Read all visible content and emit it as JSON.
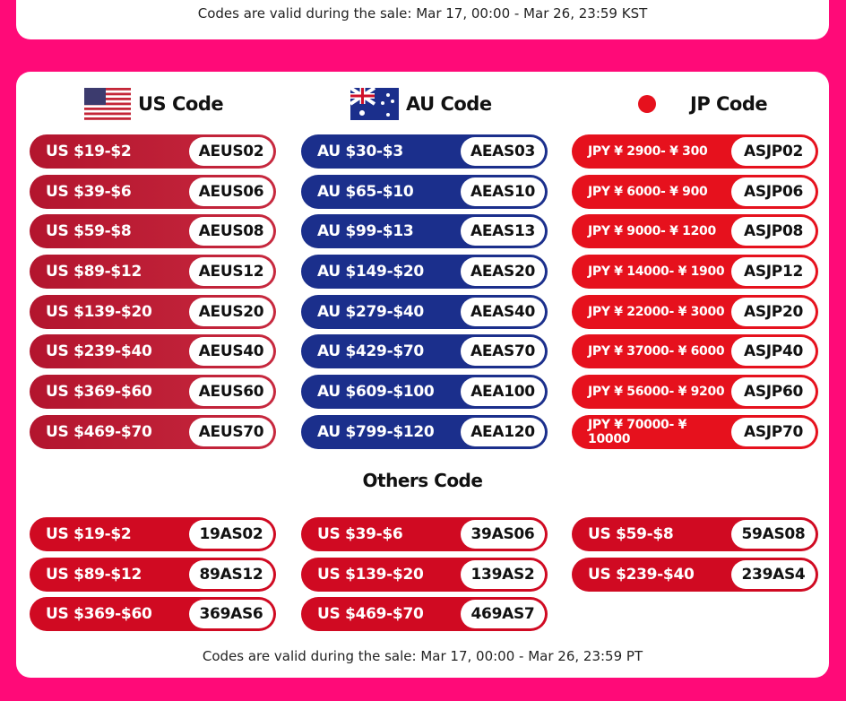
{
  "top_note": "Codes are valid during the sale: Mar 17, 00:00 - Mar 26, 23:59 KST",
  "us": {
    "title": "US Code",
    "rows": [
      [
        "US $19-$2",
        "AEUS02"
      ],
      [
        "US $39-$6",
        "AEUS06"
      ],
      [
        "US $59-$8",
        "AEUS08"
      ],
      [
        "US $89-$12",
        "AEUS12"
      ],
      [
        "US $139-$20",
        "AEUS20"
      ],
      [
        "US $239-$40",
        "AEUS40"
      ],
      [
        "US $369-$60",
        "AEUS60"
      ],
      [
        "US $469-$70",
        "AEUS70"
      ]
    ]
  },
  "au": {
    "title": "AU Code",
    "rows": [
      [
        "AU $30-$3",
        "AEAS03"
      ],
      [
        "AU $65-$10",
        "AEAS10"
      ],
      [
        "AU $99-$13",
        "AEAS13"
      ],
      [
        "AU $149-$20",
        "AEAS20"
      ],
      [
        "AU $279-$40",
        "AEAS40"
      ],
      [
        "AU $429-$70",
        "AEAS70"
      ],
      [
        "AU $609-$100",
        "AEA100"
      ],
      [
        "AU $799-$120",
        "AEA120"
      ]
    ]
  },
  "jp": {
    "title": "JP Code",
    "rows": [
      [
        "JPY ¥ 2900- ¥ 300",
        "ASJP02"
      ],
      [
        "JPY ¥ 6000- ¥ 900",
        "ASJP06"
      ],
      [
        "JPY ¥ 9000- ¥ 1200",
        "ASJP08"
      ],
      [
        "JPY ¥ 14000- ¥ 1900",
        "ASJP12"
      ],
      [
        "JPY ¥ 22000- ¥ 3000",
        "ASJP20"
      ],
      [
        "JPY ¥ 37000- ¥ 6000",
        "ASJP40"
      ],
      [
        "JPY ¥ 56000- ¥ 9200",
        "ASJP60"
      ],
      [
        "JPY ¥ 70000- ¥ 10000",
        "ASJP70"
      ]
    ]
  },
  "others": {
    "title": "Others Code",
    "columns": [
      [
        [
          "US $19-$2",
          "19AS02"
        ],
        [
          "US $89-$12",
          "89AS12"
        ],
        [
          "US $369-$60",
          "369AS6"
        ]
      ],
      [
        [
          "US $39-$6",
          "39AS06"
        ],
        [
          "US $139-$20",
          "139AS2"
        ],
        [
          "US $469-$70",
          "469AS7"
        ]
      ],
      [
        [
          "US $59-$8",
          "59AS08"
        ],
        [
          "US $239-$40",
          "239AS4"
        ]
      ]
    ]
  },
  "bottom_note": "Codes are valid during the sale: Mar 17, 00:00 - Mar 26, 23:59 PT",
  "colors": {
    "background": "#ff0a78",
    "us": "#b3152e",
    "au": "#1b2f8c",
    "jp": "#e6111d",
    "others": "#d00a22"
  }
}
